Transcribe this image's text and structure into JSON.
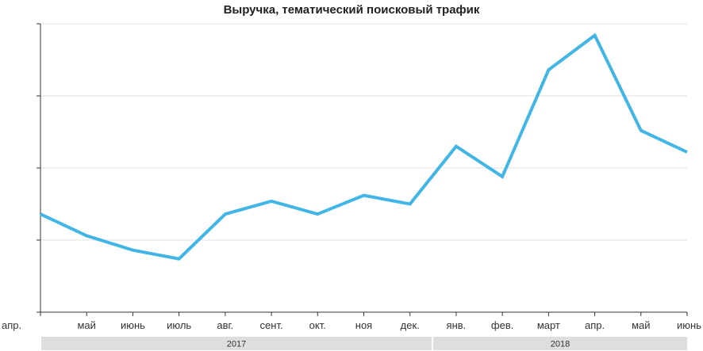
{
  "chart_data": {
    "type": "line",
    "title": "Выручка, тематический поисковый трафик",
    "categories": [
      "апр.",
      "май",
      "июнь",
      "июль",
      "авг.",
      "сент.",
      "окт.",
      "ноя",
      "дек.",
      "янв.",
      "фев.",
      "март",
      "апр.",
      "май",
      "июнь"
    ],
    "series": [
      {
        "values": [
          34,
          26.5,
          21.5,
          18.5,
          34,
          38.5,
          34,
          40.5,
          37.5,
          57.5,
          47,
          84,
          96,
          63,
          55.5
        ]
      }
    ],
    "ylim": [
      0,
      100
    ],
    "y_ticks": [
      0,
      25,
      50,
      75,
      100
    ],
    "y_tick_labels_shown": false,
    "grid": true,
    "year_groups": [
      {
        "label": "2017",
        "from": 0,
        "to": 8
      },
      {
        "label": "2018",
        "from": 9,
        "to": 14
      }
    ],
    "colors": {
      "line": "#41b6e6",
      "grid": "#e0e0e0",
      "axis": "#333333",
      "year_band": "#dedede"
    }
  }
}
